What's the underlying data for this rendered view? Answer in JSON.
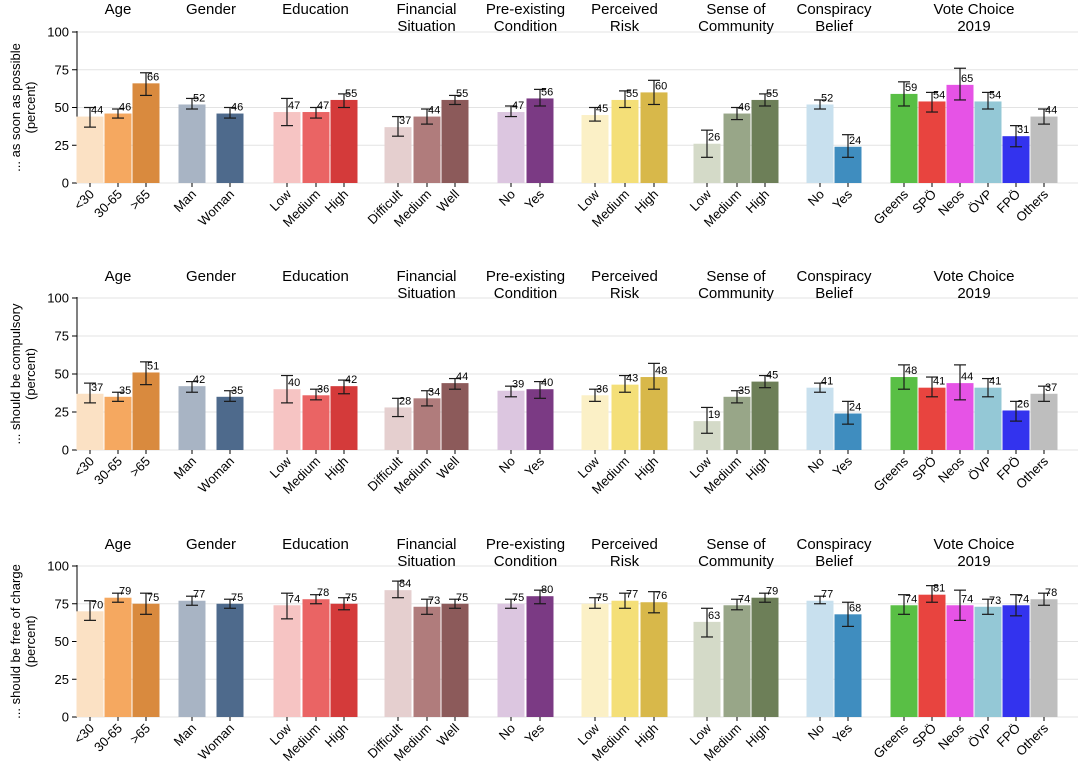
{
  "chart_data": [
    {
      "type": "bar",
      "ylabel": "... as soon as possible (percent)",
      "ylim": [
        0,
        100
      ],
      "yticks": [
        0,
        25,
        50,
        75,
        100
      ],
      "groups": [
        {
          "title": [
            "Age"
          ],
          "categories": [
            "<30",
            "30-65",
            ">65"
          ],
          "values": [
            44,
            46,
            66
          ],
          "ci": [
            [
              37,
              50
            ],
            [
              43,
              49
            ],
            [
              58,
              73
            ]
          ],
          "colors": [
            "#fbe1c4",
            "#f5a860",
            "#d98a3e"
          ]
        },
        {
          "title": [
            "Gender"
          ],
          "categories": [
            "Man",
            "Woman"
          ],
          "values": [
            52,
            46
          ],
          "ci": [
            [
              49,
              56
            ],
            [
              43,
              50
            ]
          ],
          "colors": [
            "#a8b4c4",
            "#4e6a8c"
          ]
        },
        {
          "title": [
            "Education"
          ],
          "categories": [
            "Low",
            "Medium",
            "High"
          ],
          "values": [
            47,
            47,
            55
          ],
          "ci": [
            [
              38,
              56
            ],
            [
              43,
              50
            ],
            [
              50,
              59
            ]
          ],
          "colors": [
            "#f6c4c3",
            "#ea6464",
            "#d43a3a"
          ]
        },
        {
          "title": [
            "Financial",
            "Situation"
          ],
          "categories": [
            "Difficult",
            "Medium",
            "Well"
          ],
          "values": [
            37,
            44,
            55
          ],
          "ci": [
            [
              31,
              44
            ],
            [
              39,
              49
            ],
            [
              52,
              58
            ]
          ],
          "colors": [
            "#e5cfcf",
            "#b07c7c",
            "#8c5a5a"
          ]
        },
        {
          "title": [
            "Pre-existing",
            "Condition"
          ],
          "categories": [
            "No",
            "Yes"
          ],
          "values": [
            47,
            56
          ],
          "ci": [
            [
              44,
              51
            ],
            [
              51,
              62
            ]
          ],
          "colors": [
            "#dcc6e0",
            "#7b3a84"
          ]
        },
        {
          "title": [
            "Perceived",
            "Risk"
          ],
          "categories": [
            "Low",
            "Medium",
            "High"
          ],
          "values": [
            45,
            55,
            60
          ],
          "ci": [
            [
              41,
              50
            ],
            [
              50,
              61
            ],
            [
              52,
              68
            ]
          ],
          "colors": [
            "#fbf0c6",
            "#f4df78",
            "#d8b84a"
          ]
        },
        {
          "title": [
            "Sense of",
            "Community"
          ],
          "categories": [
            "Low",
            "Medium",
            "High"
          ],
          "values": [
            26,
            46,
            55
          ],
          "ci": [
            [
              17,
              35
            ],
            [
              42,
              50
            ],
            [
              51,
              59
            ]
          ],
          "colors": [
            "#d4dac8",
            "#98a688",
            "#6d7f58"
          ]
        },
        {
          "title": [
            "Conspiracy",
            "Belief"
          ],
          "categories": [
            "No",
            "Yes"
          ],
          "values": [
            52,
            24
          ],
          "ci": [
            [
              49,
              55
            ],
            [
              17,
              32
            ]
          ],
          "colors": [
            "#c8e0ee",
            "#3f8dbf"
          ]
        },
        {
          "title": [
            "Vote Choice",
            "2019"
          ],
          "categories": [
            "Greens",
            "SPÖ",
            "Neos",
            "ÖVP",
            "FPÖ",
            "Others"
          ],
          "values": [
            59,
            54,
            65,
            54,
            31,
            44
          ],
          "ci": [
            [
              51,
              67
            ],
            [
              47,
              60
            ],
            [
              55,
              76
            ],
            [
              49,
              60
            ],
            [
              24,
              38
            ],
            [
              39,
              49
            ]
          ],
          "colors": [
            "#59bf45",
            "#e8443f",
            "#e653e6",
            "#94c8d6",
            "#3333ee",
            "#bebebe"
          ]
        }
      ]
    },
    {
      "type": "bar",
      "ylabel": "... should be compulsory (percent)",
      "ylim": [
        0,
        100
      ],
      "yticks": [
        0,
        25,
        50,
        75,
        100
      ],
      "groups": [
        {
          "title": [
            "Age"
          ],
          "categories": [
            "<30",
            "30-65",
            ">65"
          ],
          "values": [
            37,
            35,
            51
          ],
          "ci": [
            [
              31,
              44
            ],
            [
              32,
              38
            ],
            [
              43,
              58
            ]
          ],
          "colors": [
            "#fbe1c4",
            "#f5a860",
            "#d98a3e"
          ]
        },
        {
          "title": [
            "Gender"
          ],
          "categories": [
            "Man",
            "Woman"
          ],
          "values": [
            42,
            35
          ],
          "ci": [
            [
              38,
              45
            ],
            [
              32,
              39
            ]
          ],
          "colors": [
            "#a8b4c4",
            "#4e6a8c"
          ]
        },
        {
          "title": [
            "Education"
          ],
          "categories": [
            "Low",
            "Medium",
            "High"
          ],
          "values": [
            40,
            36,
            42
          ],
          "ci": [
            [
              31,
              49
            ],
            [
              33,
              40
            ],
            [
              37,
              46
            ]
          ],
          "colors": [
            "#f6c4c3",
            "#ea6464",
            "#d43a3a"
          ]
        },
        {
          "title": [
            "Financial",
            "Situation"
          ],
          "categories": [
            "Difficult",
            "Medium",
            "Well"
          ],
          "values": [
            28,
            34,
            44
          ],
          "ci": [
            [
              22,
              34
            ],
            [
              29,
              39
            ],
            [
              40,
              47
            ]
          ],
          "colors": [
            "#e5cfcf",
            "#b07c7c",
            "#8c5a5a"
          ]
        },
        {
          "title": [
            "Pre-existing",
            "Condition"
          ],
          "categories": [
            "No",
            "Yes"
          ],
          "values": [
            39,
            40
          ],
          "ci": [
            [
              35,
              42
            ],
            [
              34,
              45
            ]
          ],
          "colors": [
            "#dcc6e0",
            "#7b3a84"
          ]
        },
        {
          "title": [
            "Perceived",
            "Risk"
          ],
          "categories": [
            "Low",
            "Medium",
            "High"
          ],
          "values": [
            36,
            43,
            48
          ],
          "ci": [
            [
              32,
              40
            ],
            [
              38,
              49
            ],
            [
              40,
              57
            ]
          ],
          "colors": [
            "#fbf0c6",
            "#f4df78",
            "#d8b84a"
          ]
        },
        {
          "title": [
            "Sense of",
            "Community"
          ],
          "categories": [
            "Low",
            "Medium",
            "High"
          ],
          "values": [
            19,
            35,
            45
          ],
          "ci": [
            [
              11,
              28
            ],
            [
              31,
              39
            ],
            [
              41,
              49
            ]
          ],
          "colors": [
            "#d4dac8",
            "#98a688",
            "#6d7f58"
          ]
        },
        {
          "title": [
            "Conspiracy",
            "Belief"
          ],
          "categories": [
            "No",
            "Yes"
          ],
          "values": [
            41,
            24
          ],
          "ci": [
            [
              38,
              44
            ],
            [
              17,
              32
            ]
          ],
          "colors": [
            "#c8e0ee",
            "#3f8dbf"
          ]
        },
        {
          "title": [
            "Vote Choice",
            "2019"
          ],
          "categories": [
            "Greens",
            "SPÖ",
            "Neos",
            "ÖVP",
            "FPÖ",
            "Others"
          ],
          "values": [
            48,
            41,
            44,
            41,
            26,
            37
          ],
          "ci": [
            [
              40,
              56
            ],
            [
              35,
              48
            ],
            [
              33,
              56
            ],
            [
              35,
              47
            ],
            [
              19,
              32
            ],
            [
              32,
              42
            ]
          ],
          "colors": [
            "#59bf45",
            "#e8443f",
            "#e653e6",
            "#94c8d6",
            "#3333ee",
            "#bebebe"
          ]
        }
      ]
    },
    {
      "type": "bar",
      "ylabel": "... should be free of charge (percent)",
      "ylim": [
        0,
        100
      ],
      "yticks": [
        0,
        25,
        50,
        75,
        100
      ],
      "groups": [
        {
          "title": [
            "Age"
          ],
          "categories": [
            "<30",
            "30-65",
            ">65"
          ],
          "values": [
            70,
            79,
            75
          ],
          "ci": [
            [
              64,
              77
            ],
            [
              76,
              82
            ],
            [
              68,
              82
            ]
          ],
          "colors": [
            "#fbe1c4",
            "#f5a860",
            "#d98a3e"
          ]
        },
        {
          "title": [
            "Gender"
          ],
          "categories": [
            "Man",
            "Woman"
          ],
          "values": [
            77,
            75
          ],
          "ci": [
            [
              74,
              80
            ],
            [
              72,
              78
            ]
          ],
          "colors": [
            "#a8b4c4",
            "#4e6a8c"
          ]
        },
        {
          "title": [
            "Education"
          ],
          "categories": [
            "Low",
            "Medium",
            "High"
          ],
          "values": [
            74,
            78,
            75
          ],
          "ci": [
            [
              65,
              82
            ],
            [
              75,
              81
            ],
            [
              71,
              79
            ]
          ],
          "colors": [
            "#f6c4c3",
            "#ea6464",
            "#d43a3a"
          ]
        },
        {
          "title": [
            "Financial",
            "Situation"
          ],
          "categories": [
            "Difficult",
            "Medium",
            "Well"
          ],
          "values": [
            84,
            73,
            75
          ],
          "ci": [
            [
              79,
              90
            ],
            [
              68,
              78
            ],
            [
              72,
              78
            ]
          ],
          "colors": [
            "#e5cfcf",
            "#b07c7c",
            "#8c5a5a"
          ]
        },
        {
          "title": [
            "Pre-existing",
            "Condition"
          ],
          "categories": [
            "No",
            "Yes"
          ],
          "values": [
            75,
            80
          ],
          "ci": [
            [
              72,
              78
            ],
            [
              75,
              84
            ]
          ],
          "colors": [
            "#dcc6e0",
            "#7b3a84"
          ]
        },
        {
          "title": [
            "Perceived",
            "Risk"
          ],
          "categories": [
            "Low",
            "Medium",
            "High"
          ],
          "values": [
            75,
            77,
            76
          ],
          "ci": [
            [
              72,
              79
            ],
            [
              72,
              82
            ],
            [
              69,
              83
            ]
          ],
          "colors": [
            "#fbf0c6",
            "#f4df78",
            "#d8b84a"
          ]
        },
        {
          "title": [
            "Sense of",
            "Community"
          ],
          "categories": [
            "Low",
            "Medium",
            "High"
          ],
          "values": [
            63,
            74,
            79
          ],
          "ci": [
            [
              53,
              72
            ],
            [
              71,
              78
            ],
            [
              76,
              82
            ]
          ],
          "colors": [
            "#d4dac8",
            "#98a688",
            "#6d7f58"
          ]
        },
        {
          "title": [
            "Conspiracy",
            "Belief"
          ],
          "categories": [
            "No",
            "Yes"
          ],
          "values": [
            77,
            68
          ],
          "ci": [
            [
              75,
              80
            ],
            [
              60,
              76
            ]
          ],
          "colors": [
            "#c8e0ee",
            "#3f8dbf"
          ]
        },
        {
          "title": [
            "Vote Choice",
            "2019"
          ],
          "categories": [
            "Greens",
            "SPÖ",
            "Neos",
            "ÖVP",
            "FPÖ",
            "Others"
          ],
          "values": [
            74,
            81,
            74,
            73,
            74,
            78
          ],
          "ci": [
            [
              68,
              81
            ],
            [
              76,
              87
            ],
            [
              64,
              84
            ],
            [
              68,
              78
            ],
            [
              67,
              81
            ],
            [
              74,
              82
            ]
          ],
          "colors": [
            "#59bf45",
            "#e8443f",
            "#e653e6",
            "#94c8d6",
            "#3333ee",
            "#bebebe"
          ]
        }
      ]
    }
  ]
}
